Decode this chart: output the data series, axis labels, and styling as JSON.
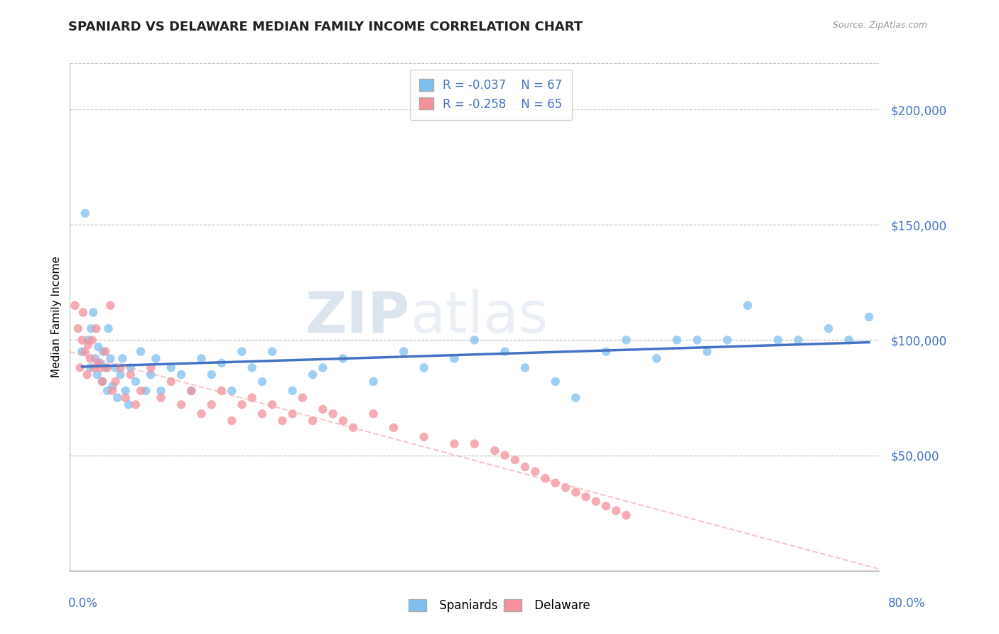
{
  "title": "SPANIARD VS DELAWARE MEDIAN FAMILY INCOME CORRELATION CHART",
  "source_text": "Source: ZipAtlas.com",
  "ylabel": "Median Family Income",
  "ytick_labels": [
    "$50,000",
    "$100,000",
    "$150,000",
    "$200,000"
  ],
  "ytick_values": [
    50000,
    100000,
    150000,
    200000
  ],
  "xlim": [
    0.0,
    80.0
  ],
  "ylim": [
    0,
    220000
  ],
  "legend_r1": "R = -0.037",
  "legend_n1": "N = 67",
  "legend_r2": "R = -0.258",
  "legend_n2": "N = 65",
  "spaniards_color": "#7FBFEF",
  "delaware_color": "#F4919B",
  "trendline1_color": "#4472C4",
  "trendline2_color": "#F4A0A8",
  "axis_label_color": "#4472C4",
  "watermark_zip": "ZIP",
  "watermark_atlas": "atlas",
  "background_color": "#FFFFFF",
  "spaniards_x": [
    1.2,
    1.5,
    1.8,
    2.0,
    2.1,
    2.3,
    2.5,
    2.7,
    2.8,
    3.0,
    3.2,
    3.3,
    3.5,
    3.7,
    3.8,
    4.0,
    4.2,
    4.5,
    4.7,
    5.0,
    5.2,
    5.5,
    5.8,
    6.0,
    6.5,
    7.0,
    7.5,
    8.0,
    8.5,
    9.0,
    10.0,
    11.0,
    12.0,
    13.0,
    14.0,
    15.0,
    16.0,
    17.0,
    18.0,
    19.0,
    20.0,
    22.0,
    24.0,
    25.0,
    27.0,
    30.0,
    33.0,
    35.0,
    38.0,
    40.0,
    43.0,
    45.0,
    48.0,
    50.0,
    53.0,
    55.0,
    58.0,
    60.0,
    62.0,
    63.0,
    65.0,
    67.0,
    70.0,
    72.0,
    75.0,
    77.0,
    79.0
  ],
  "spaniards_y": [
    95000,
    155000,
    100000,
    88000,
    105000,
    112000,
    92000,
    85000,
    97000,
    90000,
    82000,
    95000,
    88000,
    78000,
    105000,
    92000,
    80000,
    88000,
    75000,
    85000,
    92000,
    78000,
    72000,
    88000,
    82000,
    95000,
    78000,
    85000,
    92000,
    78000,
    88000,
    85000,
    78000,
    92000,
    85000,
    90000,
    78000,
    95000,
    88000,
    82000,
    95000,
    78000,
    85000,
    88000,
    92000,
    82000,
    95000,
    88000,
    92000,
    100000,
    95000,
    88000,
    82000,
    75000,
    95000,
    100000,
    92000,
    100000,
    100000,
    95000,
    100000,
    115000,
    100000,
    100000,
    105000,
    100000,
    110000
  ],
  "delaware_x": [
    0.5,
    0.8,
    1.0,
    1.2,
    1.3,
    1.5,
    1.7,
    1.8,
    2.0,
    2.2,
    2.4,
    2.6,
    2.8,
    3.0,
    3.2,
    3.5,
    3.7,
    4.0,
    4.2,
    4.5,
    5.0,
    5.5,
    6.0,
    6.5,
    7.0,
    8.0,
    9.0,
    10.0,
    11.0,
    12.0,
    13.0,
    14.0,
    15.0,
    16.0,
    17.0,
    18.0,
    19.0,
    20.0,
    21.0,
    22.0,
    23.0,
    24.0,
    25.0,
    26.0,
    27.0,
    28.0,
    30.0,
    32.0,
    35.0,
    38.0,
    40.0,
    42.0,
    43.0,
    44.0,
    45.0,
    46.0,
    47.0,
    48.0,
    49.0,
    50.0,
    51.0,
    52.0,
    53.0,
    54.0,
    55.0
  ],
  "delaware_y": [
    115000,
    105000,
    88000,
    100000,
    112000,
    95000,
    85000,
    98000,
    92000,
    100000,
    88000,
    105000,
    90000,
    88000,
    82000,
    95000,
    88000,
    115000,
    78000,
    82000,
    88000,
    75000,
    85000,
    72000,
    78000,
    88000,
    75000,
    82000,
    72000,
    78000,
    68000,
    72000,
    78000,
    65000,
    72000,
    75000,
    68000,
    72000,
    65000,
    68000,
    75000,
    65000,
    70000,
    68000,
    65000,
    62000,
    68000,
    62000,
    58000,
    55000,
    55000,
    52000,
    50000,
    48000,
    45000,
    43000,
    40000,
    38000,
    36000,
    34000,
    32000,
    30000,
    28000,
    26000,
    24000
  ]
}
